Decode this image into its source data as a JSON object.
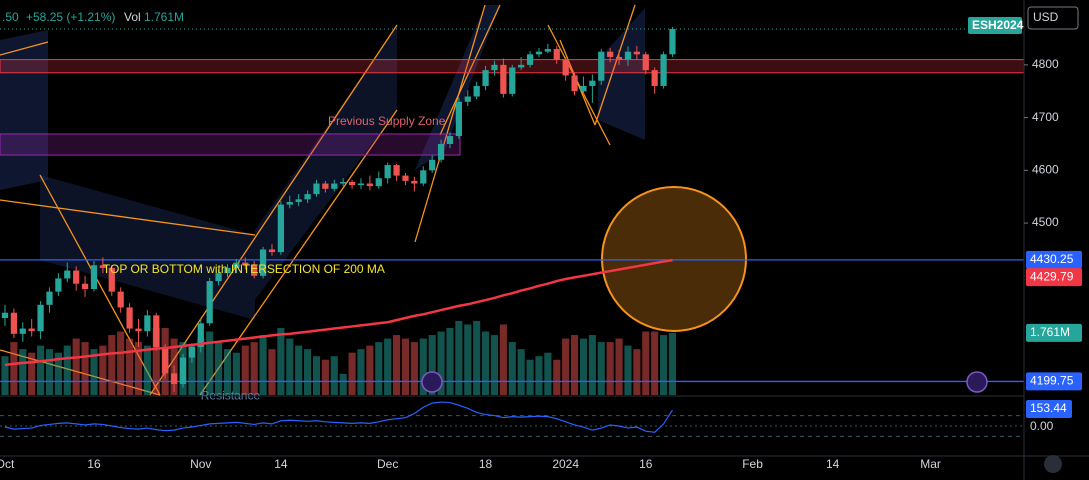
{
  "header": {
    "price_fragment": ".50",
    "change": "+58.25 (+1.21%)",
    "vol_label": "Vol",
    "currency": "USD"
  },
  "chart_data": {
    "type": "candlestick",
    "symbol": "ESH2024",
    "x": [
      0,
      1,
      2,
      3,
      4,
      5,
      6,
      7,
      8,
      9,
      10,
      11,
      12,
      13,
      14,
      15,
      16,
      17,
      18,
      19,
      20,
      21,
      22,
      23,
      24,
      25,
      26,
      27,
      28,
      29,
      30,
      31,
      32,
      33,
      34,
      35,
      36,
      37,
      38,
      39,
      40,
      41,
      42,
      43,
      44,
      45,
      46,
      47,
      48,
      49,
      50,
      51,
      52,
      53,
      54,
      55,
      56,
      57,
      58,
      59,
      60,
      61,
      62,
      63,
      64,
      65,
      66,
      67,
      68,
      69,
      70,
      71,
      72,
      73,
      74,
      75
    ],
    "xlim": [
      -0.56,
      114.5
    ],
    "xticks": [
      {
        "value": 0,
        "label": "Oct"
      },
      {
        "value": 10,
        "label": "16"
      },
      {
        "value": 22,
        "label": "Nov"
      },
      {
        "value": 31,
        "label": "14"
      },
      {
        "value": 43,
        "label": "Dec"
      },
      {
        "value": 54,
        "label": "18"
      },
      {
        "value": 63,
        "label": "2024"
      },
      {
        "value": 72,
        "label": "16"
      },
      {
        "value": 84,
        "label": "Feb"
      },
      {
        "value": 93,
        "label": "14"
      },
      {
        "value": 104,
        "label": "Mar"
      }
    ],
    "open": [
      4320,
      4330,
      4290,
      4300,
      4295,
      4345,
      4370,
      4395,
      4410,
      4385,
      4375,
      4420,
      4415,
      4370,
      4340,
      4300,
      4295,
      4325,
      4265,
      4215,
      4195,
      4245,
      4265,
      4310,
      4390,
      4405,
      4415,
      4425,
      4420,
      4400,
      4450,
      4445,
      4535,
      4540,
      4545,
      4555,
      4575,
      4565,
      4575,
      4578,
      4572,
      4575,
      4570,
      4585,
      4610,
      4590,
      4580,
      4575,
      4600,
      4620,
      4650,
      4665,
      4730,
      4740,
      4760,
      4790,
      4800,
      4745,
      4795,
      4800,
      4820,
      4825,
      4830,
      4810,
      4780,
      4750,
      4760,
      4770,
      4825,
      4815,
      4810,
      4825,
      4820,
      4790,
      4760,
      4820
    ],
    "high": [
      4345,
      4338,
      4312,
      4318,
      4352,
      4378,
      4405,
      4425,
      4418,
      4400,
      4428,
      4435,
      4420,
      4378,
      4348,
      4318,
      4335,
      4330,
      4270,
      4230,
      4252,
      4272,
      4318,
      4396,
      4412,
      4422,
      4432,
      4435,
      4428,
      4455,
      4460,
      4542,
      4552,
      4555,
      4562,
      4582,
      4580,
      4582,
      4585,
      4582,
      4585,
      4590,
      4598,
      4615,
      4612,
      4595,
      4588,
      4608,
      4628,
      4658,
      4672,
      4738,
      4752,
      4768,
      4798,
      4808,
      4812,
      4800,
      4815,
      4826,
      4832,
      4840,
      4836,
      4815,
      4786,
      4778,
      4782,
      4830,
      4832,
      4828,
      4835,
      4836,
      4825,
      4795,
      4825,
      4872
    ],
    "low": [
      4305,
      4282,
      4275,
      4285,
      4280,
      4330,
      4362,
      4388,
      4372,
      4360,
      4370,
      4405,
      4362,
      4330,
      4292,
      4265,
      4285,
      4258,
      4205,
      4180,
      4188,
      4235,
      4255,
      4305,
      4382,
      4398,
      4405,
      4412,
      4395,
      4395,
      4438,
      4440,
      4528,
      4532,
      4538,
      4550,
      4558,
      4560,
      4570,
      4565,
      4565,
      4562,
      4565,
      4575,
      4580,
      4572,
      4560,
      4570,
      4595,
      4615,
      4642,
      4660,
      4722,
      4735,
      4752,
      4780,
      4738,
      4740,
      4790,
      4795,
      4815,
      4822,
      4802,
      4770,
      4742,
      4745,
      4728,
      4762,
      4805,
      4800,
      4798,
      4810,
      4782,
      4745,
      4755,
      4815
    ],
    "close": [
      4330,
      4290,
      4300,
      4295,
      4345,
      4370,
      4395,
      4410,
      4385,
      4375,
      4420,
      4415,
      4370,
      4340,
      4300,
      4295,
      4325,
      4265,
      4215,
      4195,
      4245,
      4265,
      4310,
      4390,
      4405,
      4415,
      4425,
      4420,
      4400,
      4450,
      4445,
      4535,
      4540,
      4545,
      4555,
      4575,
      4565,
      4575,
      4578,
      4572,
      4575,
      4570,
      4585,
      4610,
      4590,
      4580,
      4575,
      4600,
      4620,
      4650,
      4665,
      4730,
      4740,
      4760,
      4790,
      4800,
      4745,
      4795,
      4800,
      4820,
      4825,
      4830,
      4810,
      4780,
      4750,
      4760,
      4770,
      4825,
      4815,
      4810,
      4825,
      4820,
      4790,
      4760,
      4820,
      4868
    ],
    "ylim": [
      4174,
      4923
    ],
    "yticks": [
      4500,
      4600,
      4700,
      4800
    ],
    "grid": false,
    "color_up": "#26a69a",
    "color_down": "#ef5350",
    "volume": {
      "values": [
        1.1,
        1.5,
        1.3,
        1.2,
        1.4,
        1.3,
        1.2,
        1.4,
        1.6,
        1.5,
        1.3,
        1.4,
        1.7,
        1.8,
        1.6,
        1.5,
        1.4,
        1.9,
        1.9,
        1.6,
        1.5,
        1.4,
        1.6,
        1.8,
        1.5,
        1.3,
        1.2,
        1.4,
        1.5,
        1.7,
        1.3,
        1.9,
        1.6,
        1.4,
        1.3,
        1.1,
        1.0,
        1.1,
        0.6,
        1.2,
        1.3,
        1.4,
        1.5,
        1.6,
        1.7,
        1.6,
        1.5,
        1.6,
        1.7,
        1.8,
        1.9,
        2.1,
        2.0,
        2.1,
        1.8,
        1.7,
        2.0,
        1.5,
        1.3,
        1.0,
        1.1,
        1.2,
        1.0,
        1.6,
        1.7,
        1.6,
        1.7,
        1.5,
        1.5,
        1.6,
        1.4,
        1.3,
        1.8,
        1.8,
        1.7,
        1.761
      ],
      "last_label": "1.761M",
      "ylim": [
        0,
        11.2
      ]
    },
    "ma": {
      "color": "#f23645",
      "values": [
        4231,
        4233,
        4235,
        4236,
        4238,
        4240,
        4242,
        4244,
        4245,
        4247,
        4249,
        4251,
        4253,
        4254,
        4256,
        4258,
        4260,
        4262,
        4263,
        4265,
        4267,
        4269,
        4271,
        4273,
        4275,
        4277,
        4279,
        4281,
        4283,
        4285,
        4287,
        4289,
        4290,
        4292,
        4294,
        4296,
        4298,
        4300,
        4302,
        4304,
        4306,
        4308,
        4310,
        4312,
        4316,
        4320,
        4324,
        4327,
        4331,
        4335,
        4339,
        4343,
        4346,
        4350,
        4354,
        4358,
        4363,
        4367,
        4372,
        4376,
        4381,
        4385,
        4390,
        4394,
        4397,
        4400,
        4403,
        4406,
        4409,
        4412,
        4415,
        4418,
        4421,
        4424,
        4427,
        4429.79
      ]
    },
    "levels": [
      {
        "value": 4430.25,
        "color": "#2962ff"
      },
      {
        "value": 4199.75,
        "color": "#2962ff"
      }
    ],
    "zones": [
      {
        "low": 4785,
        "high": 4810,
        "color": "#f23645"
      },
      {
        "low": 4629,
        "high": 4669,
        "color": "#9c27b0",
        "label": "Previous Supply Zone"
      }
    ],
    "annotations": [
      {
        "text": "TOP OR BOTTOM with INTERSECTION OF 200 MA",
        "price": 4430,
        "x": 11
      },
      {
        "text": "Resistance",
        "price": 4190,
        "x": 22
      }
    ],
    "oscillator": {
      "color": "#2962ff",
      "ylim": [
        -279,
        269
      ],
      "yticks": [
        {
          "value": 0,
          "label": "0.00"
        }
      ],
      "levels": [
        -100,
        100
      ],
      "values": [
        -10,
        -30,
        -25,
        -20,
        5,
        15,
        25,
        30,
        20,
        10,
        20,
        15,
        0,
        -15,
        -25,
        -30,
        -20,
        -35,
        -45,
        -40,
        -20,
        -10,
        5,
        20,
        25,
        30,
        35,
        25,
        15,
        30,
        20,
        50,
        55,
        50,
        45,
        50,
        40,
        35,
        30,
        25,
        30,
        25,
        40,
        60,
        70,
        80,
        120,
        180,
        220,
        230,
        225,
        200,
        170,
        130,
        110,
        100,
        80,
        90,
        85,
        90,
        95,
        90,
        70,
        40,
        10,
        -10,
        -40,
        -20,
        10,
        0,
        -20,
        -10,
        -50,
        -60,
        20,
        153.44
      ]
    }
  }
}
